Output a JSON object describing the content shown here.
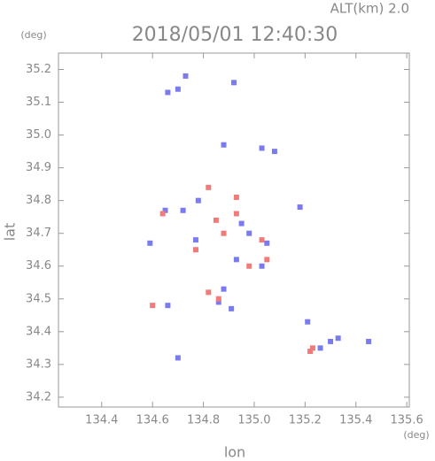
{
  "chart_data": {
    "type": "scatter",
    "title": "2018/05/01 12:40:30",
    "subtitle": "ALT(km) 2.0",
    "y_unit": "(deg)",
    "x_unit": "(deg)",
    "xlabel": "lon",
    "ylabel": "lat",
    "xlim": [
      134.23,
      135.61
    ],
    "ylim": [
      34.17,
      35.25
    ],
    "xticks": [
      134.4,
      134.6,
      134.8,
      {
        "value": 135.0,
        "label": "135.0"
      },
      135.2,
      135.4,
      135.6
    ],
    "yticks": [
      34.2,
      34.3,
      34.4,
      34.5,
      34.6,
      34.7,
      34.8,
      34.9,
      {
        "value": 35.0,
        "label": "35.0"
      },
      35.1,
      35.2
    ],
    "series": [
      {
        "color": "#7b7bf0",
        "x": [
          134.7,
          134.66,
          134.73,
          134.92,
          134.88,
          135.03,
          135.08,
          134.78,
          134.72,
          134.95,
          134.98,
          135.05,
          134.93,
          134.88,
          134.86,
          134.91,
          135.3,
          135.33,
          135.45,
          135.26,
          134.7,
          134.66,
          134.59,
          134.65,
          135.18,
          135.21,
          134.77,
          135.03
        ],
        "values": [
          35.14,
          35.13,
          35.18,
          35.16,
          34.97,
          34.96,
          34.95,
          34.8,
          34.77,
          34.73,
          34.7,
          34.67,
          34.62,
          34.53,
          34.49,
          34.47,
          34.37,
          34.38,
          34.37,
          34.35,
          34.32,
          34.48,
          34.67,
          34.77,
          34.78,
          34.43,
          34.68,
          34.6
        ]
      },
      {
        "color": "#f07b7b",
        "x": [
          134.64,
          134.82,
          134.85,
          134.88,
          134.93,
          135.05,
          135.03,
          134.86,
          134.82,
          135.22,
          135.23,
          134.6,
          134.93,
          134.77,
          134.98
        ],
        "values": [
          34.76,
          34.84,
          34.74,
          34.7,
          34.76,
          34.62,
          34.68,
          34.5,
          34.52,
          34.34,
          34.35,
          34.48,
          34.81,
          34.65,
          34.6
        ]
      }
    ]
  }
}
